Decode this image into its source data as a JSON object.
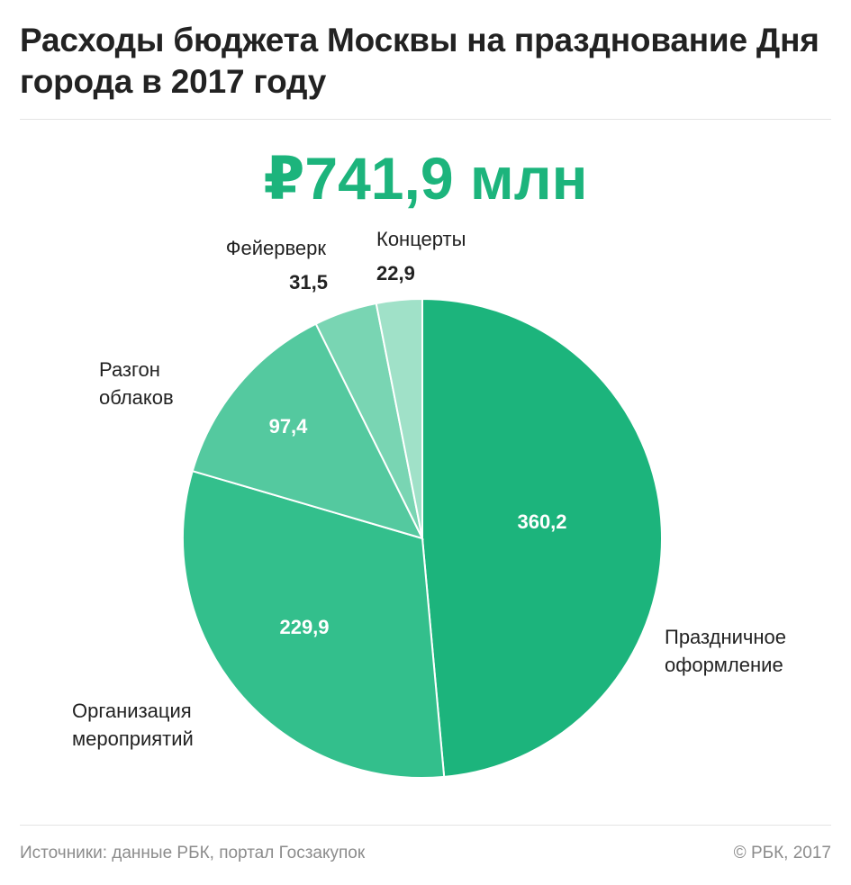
{
  "title": "Расходы бюджета Москвы на празднование Дня города в 2017 году",
  "total_label": "₽741,9 млн",
  "footer": {
    "source": "Источники: данные РБК, портал Госзакупок",
    "copyright": "© РБК, 2017"
  },
  "chart_data": {
    "type": "pie",
    "title": "Расходы бюджета Москвы на празднование Дня города в 2017 году",
    "total": "₽741,9 млн",
    "slices": [
      {
        "name": "Праздничное оформление",
        "value": 360.2,
        "value_label": "360,2",
        "color": "#1cb47c"
      },
      {
        "name": "Организация мероприятий",
        "value": 229.9,
        "value_label": "229,9",
        "color": "#33bf8c"
      },
      {
        "name": "Разгон облаков",
        "value": 97.4,
        "value_label": "97,4",
        "color": "#54c99f"
      },
      {
        "name": "Фейерверк",
        "value": 31.5,
        "value_label": "31,5",
        "color": "#79d5b3"
      },
      {
        "name": "Концерты",
        "value": 22.9,
        "value_label": "22,9",
        "color": "#a0e1c8"
      }
    ]
  }
}
